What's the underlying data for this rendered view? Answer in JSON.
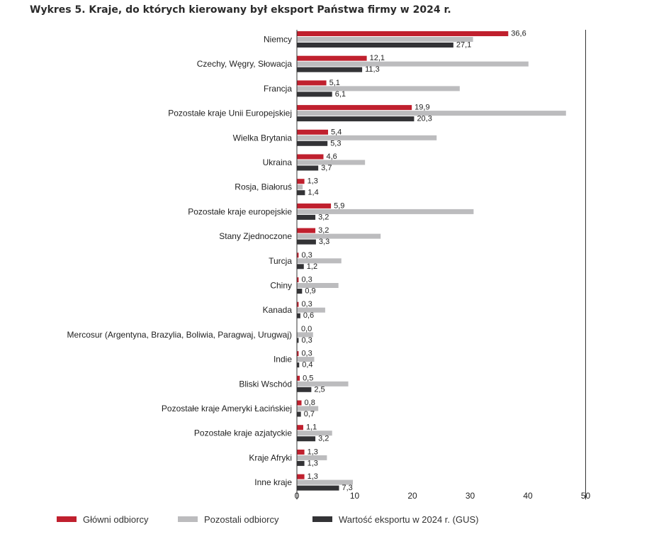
{
  "title": "Wykres 5.  Kraje, do których kierowany był eksport Państwa firmy w 2024 r.",
  "chart_data": {
    "type": "bar",
    "orientation": "horizontal",
    "categories": [
      "Niemcy",
      "Czechy, Węgry, Słowacja",
      "Francja",
      "Pozostałe kraje Unii Europejskiej",
      "Wielka Brytania",
      "Ukraina",
      "Rosja, Białoruś",
      "Pozostałe kraje europejskie",
      "Stany Zjednoczone",
      "Turcja",
      "Chiny",
      "Kanada",
      "Mercosur (Argentyna, Brazylia, Boliwia, Paragwaj, Urugwaj)",
      "Indie",
      "Bliski Wschód",
      "Pozostałe kraje Ameryki Łacińskiej",
      "Pozostałe kraje azjatyckie",
      "Kraje Afryki",
      "Inne kraje"
    ],
    "series": [
      {
        "name": "Główni odbiorcy",
        "color": "#c0202e",
        "values": [
          36.6,
          12.1,
          5.1,
          19.9,
          5.4,
          4.6,
          1.3,
          5.9,
          3.2,
          0.3,
          0.3,
          0.3,
          0.0,
          0.3,
          0.5,
          0.8,
          1.1,
          1.3,
          1.3
        ],
        "labels": [
          "36,6",
          "12,1",
          "5,1",
          "19,9",
          "5,4",
          "4,6",
          "1,3",
          "5,9",
          "3,2",
          "0,3",
          "0,3",
          "0,3",
          "0,0",
          "0,3",
          "0,5",
          "0,8",
          "1,1",
          "1,3",
          "1,3"
        ]
      },
      {
        "name": "Pozostali odbiorcy",
        "color": "#bcbcbe",
        "values": [
          30.5,
          40.1,
          28.2,
          46.6,
          24.2,
          11.8,
          1.0,
          30.6,
          14.5,
          7.7,
          7.2,
          4.9,
          2.8,
          3.0,
          8.9,
          3.7,
          6.1,
          5.2,
          9.7
        ]
      },
      {
        "name": "Wartość eksportu w 2024 r. (GUS)",
        "color": "#333336",
        "values": [
          27.1,
          11.3,
          6.1,
          20.3,
          5.3,
          3.7,
          1.4,
          3.2,
          3.3,
          1.2,
          0.9,
          0.6,
          0.3,
          0.4,
          2.5,
          0.7,
          3.2,
          1.3,
          7.3
        ],
        "labels": [
          "27,1",
          "11,3",
          "6,1",
          "20,3",
          "5,3",
          "3,7",
          "1,4",
          "3,2",
          "3,3",
          "1,2",
          "0,9",
          "0,6",
          "0,3",
          "0,4",
          "2,5",
          "0,7",
          "3,2",
          "1,3",
          "7,3"
        ]
      }
    ],
    "xlim": [
      0,
      50
    ],
    "xticks": [
      "0",
      "10",
      "20",
      "30",
      "40",
      "50"
    ],
    "xlabel": "",
    "ylabel": "",
    "grid": false,
    "legend_position": "bottom"
  }
}
